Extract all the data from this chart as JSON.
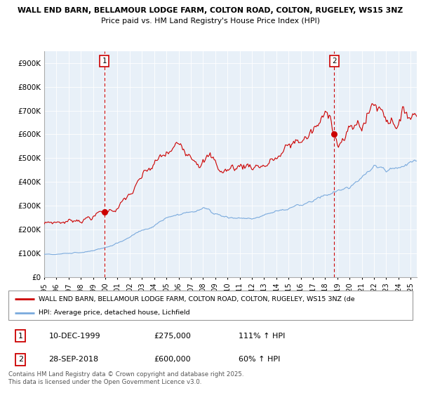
{
  "title_line1": "WALL END BARN, BELLAMOUR LODGE FARM, COLTON ROAD, COLTON, RUGELEY, WS15 3NZ",
  "title_line2": "Price paid vs. HM Land Registry's House Price Index (HPI)",
  "ylim": [
    0,
    950000
  ],
  "yticks": [
    0,
    100000,
    200000,
    300000,
    400000,
    500000,
    600000,
    700000,
    800000,
    900000
  ],
  "ytick_labels": [
    "£0",
    "£100K",
    "£200K",
    "£300K",
    "£400K",
    "£500K",
    "£600K",
    "£700K",
    "£800K",
    "£900K"
  ],
  "sale1_year": 1999.92,
  "sale1_price": 275000,
  "sale1_label": "1",
  "sale1_date": "10-DEC-1999",
  "sale1_hpi": "111% ↑ HPI",
  "sale2_year": 2018.75,
  "sale2_price": 600000,
  "sale2_label": "2",
  "sale2_date": "28-SEP-2018",
  "sale2_hpi": "60% ↑ HPI",
  "red_line_color": "#cc0000",
  "blue_line_color": "#7aaadd",
  "plot_bg_color": "#e8f0f8",
  "grid_color": "#ffffff",
  "legend_property_label": "WALL END BARN, BELLAMOUR LODGE FARM, COLTON ROAD, COLTON, RUGELEY, WS15 3NZ (de",
  "legend_hpi_label": "HPI: Average price, detached house, Lichfield",
  "footnote": "Contains HM Land Registry data © Crown copyright and database right 2025.\nThis data is licensed under the Open Government Licence v3.0."
}
